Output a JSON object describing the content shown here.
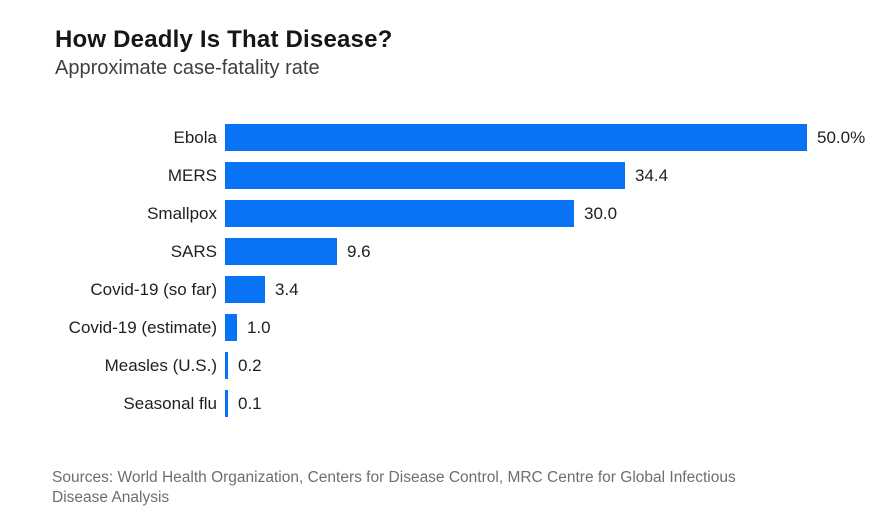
{
  "header": {
    "title": "How Deadly Is That Disease?",
    "subtitle": "Approximate case-fatality rate"
  },
  "chart_data": {
    "type": "bar",
    "orientation": "horizontal",
    "title": "How Deadly Is That Disease?",
    "subtitle": "Approximate case-fatality rate",
    "categories": [
      "Ebola",
      "MERS",
      "Smallpox",
      "SARS",
      "Covid-19 (so far)",
      "Covid-19 (estimate)",
      "Measles (U.S.)",
      "Seasonal flu"
    ],
    "values": [
      50.0,
      34.4,
      30.0,
      9.6,
      3.4,
      1.0,
      0.2,
      0.1
    ],
    "value_labels": [
      "50.0%",
      "34.4",
      "30.0",
      "9.6",
      "3.4",
      "1.0",
      "0.2",
      "0.1"
    ],
    "xlabel": "",
    "ylabel": "",
    "xlim": [
      0,
      50
    ],
    "grid": false,
    "legend": false,
    "bar_color": "#0873F5"
  },
  "footer": {
    "sources_line1": "Sources: World Health Organization, Centers for Disease Control, MRC Centre for Global Infectious",
    "sources_line2": "Disease Analysis"
  }
}
